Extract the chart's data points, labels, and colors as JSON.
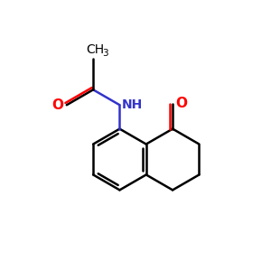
{
  "background_color": "#ffffff",
  "bond_color": "#000000",
  "bond_width": 1.8,
  "atom_colors": {
    "O": "#ff0000",
    "N": "#3333cc",
    "C": "#000000"
  },
  "font_size_label": 10,
  "font_size_subscript": 7.5,
  "xlim": [
    0,
    10
  ],
  "ylim": [
    0,
    10
  ],
  "s": 1.15
}
